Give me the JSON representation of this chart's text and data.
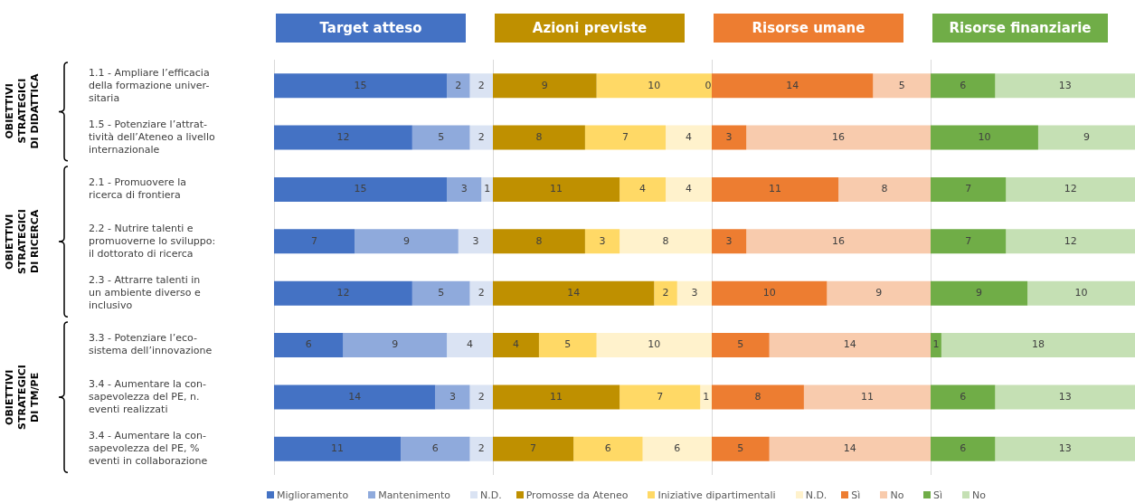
{
  "chart_data": [
    {
      "type": "bar",
      "orientation": "horizontal",
      "stacked": true,
      "title": "Target atteso",
      "data_labels": true,
      "legend": "bottom",
      "tick_labels": "y",
      "categories": [
        "1.1 - Ampliare l’efficacia\ndella formazione univer-\nsitaria",
        "1.5 - Potenziare l’attrat-\ntività dell’Ateneo a livello\ninternazionale",
        "2.1 - Promuovere la\nricerca di frontiera",
        "2.2 - Nutrire talenti e\npromuoverne lo sviluppo:\nil dottorato di ricerca",
        "2.3 - Attrarre talenti in\nun ambiente diverso e\ninclusivo",
        "3.3 - Potenziare l’eco-\nsistema dell’innovazione",
        "3.4 - Aumentare la con-\nsapevolezza del PE, n.\neventi realizzati",
        "3.4 - Aumentare la con-\nsapevolezza del PE, %\neventi in collaborazione"
      ],
      "annotations": [
        "OBIETTIVI\nSTRATEGICI\nDI DIDATTICA",
        "OBIETTIVI\nSTRATEGICI\nDI RICERCA",
        "OBIETTIVI\nSTRATEGICI\nDI TM/PE"
      ],
      "series": [
        {
          "name": "Miglioramento",
          "color": "#4472c4",
          "values": [
            15,
            12,
            15,
            7,
            12,
            6,
            14,
            11
          ]
        },
        {
          "name": "Mantenimento",
          "color": "#8faadc",
          "values": [
            2,
            5,
            3,
            9,
            5,
            9,
            3,
            6
          ]
        },
        {
          "name": "N.D.",
          "color": "#dae3f3",
          "values": [
            2,
            2,
            1,
            3,
            2,
            4,
            2,
            2
          ]
        }
      ]
    },
    {
      "type": "bar",
      "orientation": "horizontal",
      "stacked": true,
      "title": "Azioni previste",
      "data_labels": true,
      "legend": "bottom",
      "tick_labels": false,
      "categories": [
        null,
        null,
        null,
        null,
        null,
        null,
        null,
        null
      ],
      "series": [
        {
          "name": "Promosse da Ateneo",
          "color": "#bf9000",
          "values": [
            9,
            8,
            11,
            8,
            14,
            4,
            11,
            7
          ]
        },
        {
          "name": "Iniziative dipartimentali",
          "color": "#ffd966",
          "values": [
            10,
            7,
            4,
            3,
            2,
            5,
            7,
            6
          ]
        },
        {
          "name": "N.D.",
          "color": "#fff2cc",
          "values": [
            0,
            4,
            4,
            8,
            3,
            10,
            1,
            6
          ]
        }
      ]
    },
    {
      "type": "bar",
      "orientation": "horizontal",
      "stacked": true,
      "title": "Risorse umane",
      "data_labels": true,
      "legend": "bottom",
      "tick_labels": false,
      "categories": [
        null,
        null,
        null,
        null,
        null,
        null,
        null,
        null
      ],
      "series": [
        {
          "name": "Sì",
          "color": "#ed7d31",
          "values": [
            14,
            3,
            11,
            3,
            10,
            5,
            8,
            5
          ]
        },
        {
          "name": "No",
          "color": "#f8cbad",
          "values": [
            5,
            16,
            8,
            16,
            9,
            14,
            11,
            14
          ]
        }
      ]
    },
    {
      "type": "bar",
      "orientation": "horizontal",
      "stacked": true,
      "title": "Risorse finanziarie",
      "data_labels": true,
      "legend": "bottom",
      "tick_labels": false,
      "categories": [
        null,
        null,
        null,
        null,
        null,
        null,
        null,
        null
      ],
      "series": [
        {
          "name": "Sì",
          "color": "#70ad47",
          "values": [
            6,
            10,
            7,
            7,
            9,
            1,
            6,
            6
          ]
        },
        {
          "name": "No",
          "color": "#c5e0b4",
          "values": [
            13,
            9,
            12,
            12,
            10,
            18,
            13,
            13
          ]
        }
      ]
    }
  ]
}
